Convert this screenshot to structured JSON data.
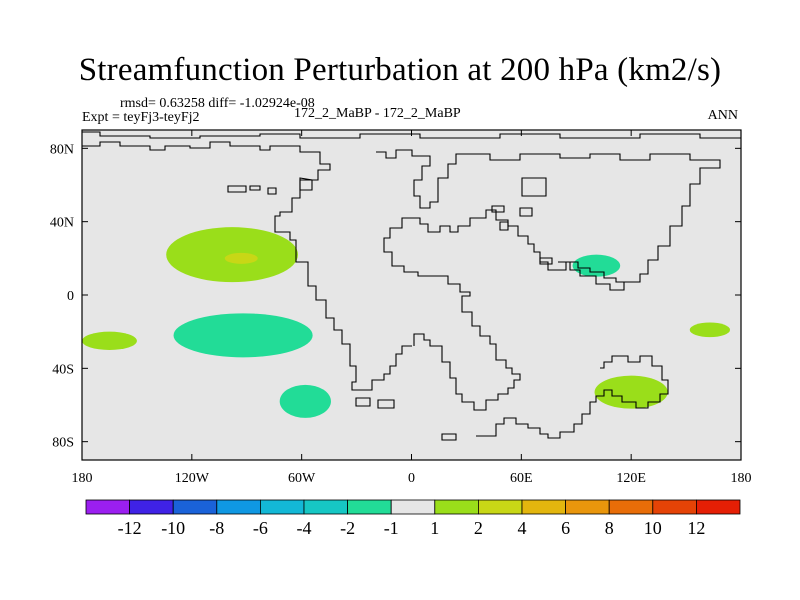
{
  "header": {
    "title": "Streamfunction Perturbation at 200 hPa (km2/s)",
    "rmsd_line": "rmsd= 0.63258 diff= -1.02924e-08",
    "expt_line": "Expt = teyFj3-teyFj2",
    "case_line": "172_2_MaBP - 172_2_MaBP",
    "season": "ANN"
  },
  "chart_data": {
    "type": "contour-map",
    "title": "Streamfunction Perturbation at 200 hPa (km2/s)",
    "xlim": [
      -180,
      180
    ],
    "ylim": [
      -90,
      90
    ],
    "xticks": [
      {
        "value": -180,
        "label": "180"
      },
      {
        "value": -120,
        "label": "120W"
      },
      {
        "value": -60,
        "label": "60W"
      },
      {
        "value": 0,
        "label": "0"
      },
      {
        "value": 60,
        "label": "60E"
      },
      {
        "value": 120,
        "label": "120E"
      },
      {
        "value": 180,
        "label": "180"
      }
    ],
    "yticks": [
      {
        "value": 80,
        "label": "80N"
      },
      {
        "value": 40,
        "label": "40N"
      },
      {
        "value": 0,
        "label": "0"
      },
      {
        "value": -40,
        "label": "40S"
      },
      {
        "value": -80,
        "label": "80S"
      }
    ],
    "background_color": "#e6e6e6",
    "coastline_color": "#000000",
    "colorbar": {
      "levels": [
        "-12",
        "-10",
        "-8",
        "-6",
        "-4",
        "-2",
        "-1",
        "1",
        "2",
        "4",
        "6",
        "8",
        "10",
        "12"
      ],
      "colors": [
        "#9b1ff0",
        "#3f22e6",
        "#1a62d9",
        "#0f98e3",
        "#13b8d6",
        "#16c7c4",
        "#22dc97",
        "#e6e6e6",
        "#9ade1a",
        "#c8d716",
        "#e3b60e",
        "#e9960c",
        "#e86d08",
        "#e54306",
        "#e51f05"
      ]
    },
    "regions": [
      {
        "name": "north-pacific-positive",
        "value_range": "1 to 2",
        "color": "#9ade1a",
        "center": [
          -98,
          22
        ],
        "half_width": [
          36,
          15
        ]
      },
      {
        "name": "north-pacific-core",
        "value_range": "2 to 4",
        "color": "#c8d716",
        "center": [
          -93,
          20
        ],
        "half_width": [
          9,
          3
        ]
      },
      {
        "name": "tropical-pacific-negative",
        "value_range": "-2 to -1",
        "color": "#22dc97",
        "center": [
          -92,
          -22
        ],
        "half_width": [
          38,
          12
        ]
      },
      {
        "name": "south-pacific-negative",
        "value_range": "-2 to -1",
        "color": "#22dc97",
        "center": [
          -58,
          -58
        ],
        "half_width": [
          14,
          9
        ]
      },
      {
        "name": "west-pacific-positive",
        "value_range": "1 to 2",
        "color": "#9ade1a",
        "center": [
          -165,
          -25
        ],
        "half_width": [
          15,
          5
        ]
      },
      {
        "name": "south-indian-positive",
        "value_range": "1 to 2",
        "color": "#9ade1a",
        "center": [
          120,
          -53
        ],
        "half_width": [
          20,
          9
        ]
      },
      {
        "name": "south-asia-negative",
        "value_range": "-2 to -1",
        "color": "#22dc97",
        "center": [
          101,
          16
        ],
        "half_width": [
          13,
          6
        ]
      },
      {
        "name": "east-pacific-positive",
        "value_range": "1 to 2",
        "color": "#9ade1a",
        "center": [
          163,
          -19
        ],
        "half_width": [
          11,
          4
        ]
      }
    ]
  }
}
